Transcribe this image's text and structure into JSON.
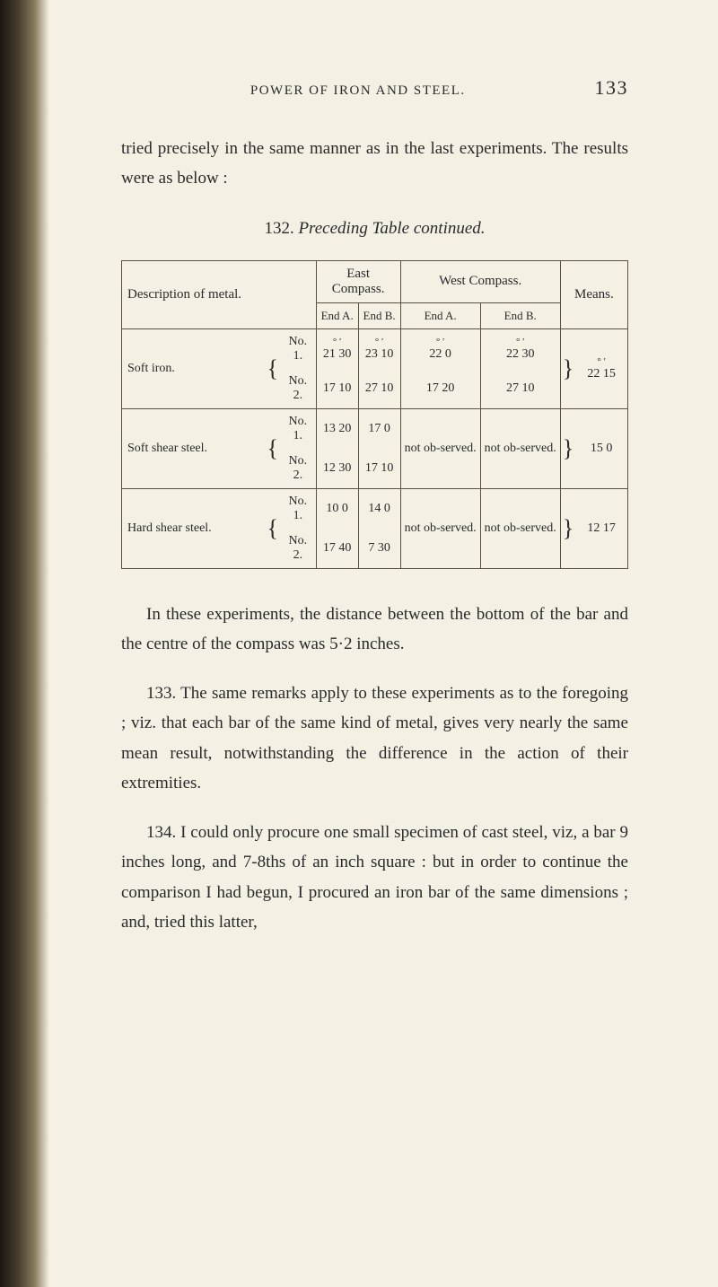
{
  "page": {
    "running_title": "POWER OF IRON AND STEEL.",
    "page_number": "133"
  },
  "paragraphs": {
    "p1": "tried precisely in the same manner as in the last experiments.  The results were as below :",
    "p2": "In these experiments, the distance between the bottom of the bar and the centre of the compass was 5·2 inches.",
    "p3": "133. The same remarks apply to these experiments as to the foregoing ; viz. that each bar of the same kind of metal, gives very nearly the same mean result, notwithstanding the difference in the action of their extremities.",
    "p4": "134. I could only procure one small specimen of cast steel, viz, a bar 9 inches long, and 7-8ths of an inch square : but in order to continue the comparison I had begun, I procured an iron bar of the same dimensions ; and, tried this latter,"
  },
  "table": {
    "caption_num": "132.",
    "caption_text": "Preceding Table continued.",
    "headers": {
      "desc": "Description of metal.",
      "east": "East Compass.",
      "west": "West Compass.",
      "means": "Means.",
      "end_a": "End A.",
      "end_b": "End B."
    },
    "rows": {
      "soft_iron": {
        "label": "Soft iron.",
        "no1": "No. 1.",
        "no2": "No. 2.",
        "r1_ea": "21  30",
        "r1_eb": "23  10",
        "r1_wa": "22   0",
        "r1_wb": "22  30",
        "r2_ea": "17  10",
        "r2_eb": "27  10",
        "r2_wa": "17  20",
        "r2_wb": "27  10",
        "means": "22  15"
      },
      "soft_shear": {
        "label": "Soft shear steel.",
        "no1": "No. 1.",
        "no2": "No. 2.",
        "r1_ea": "13  20",
        "r1_eb": "17   0",
        "r1_wa": "not ob-served.",
        "r1_wb": "not ob-served.",
        "r2_ea": "12  30",
        "r2_eb": "17  10",
        "means": "15   0"
      },
      "hard_shear": {
        "label": "Hard shear steel.",
        "no1": "No. 1.",
        "no2": "No. 2.",
        "r1_ea": "10   0",
        "r1_eb": "14   0",
        "r1_wa": "not ob-served.",
        "r1_wb": "not ob-served.",
        "r2_ea": "17  40",
        "r2_eb": " 7  30",
        "means": "12  17"
      }
    },
    "deg_mark": "°      ′"
  }
}
